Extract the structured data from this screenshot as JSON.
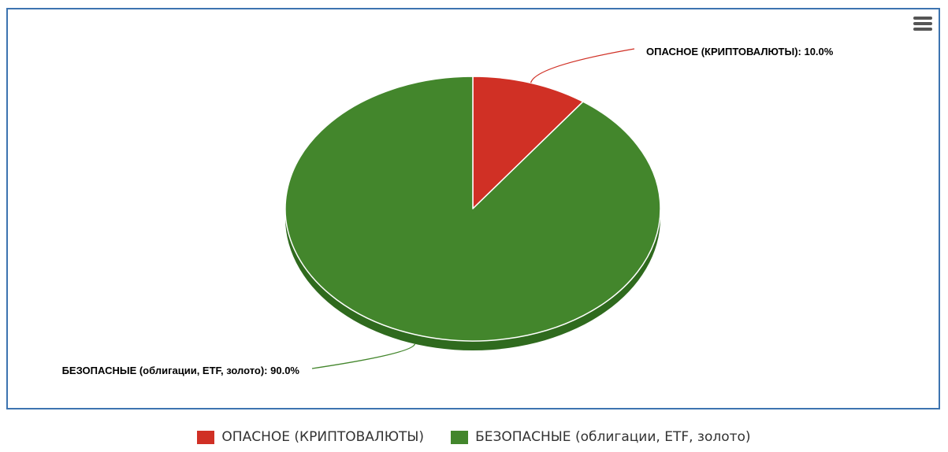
{
  "chart_data": {
    "type": "pie",
    "title": "",
    "categories": [
      "ОПАСНОЕ (КРИПТОВАЛЮТЫ)",
      "БЕЗОПАСНЫЕ (облигации, ETF, золото)"
    ],
    "values": [
      10.0,
      90.0
    ],
    "data_labels": [
      "ОПАСНОЕ (КРИПТОВАЛЮТЫ): 10.0%",
      "БЕЗОПАСНЫЕ (облигации, ETF, золото): 90.0%"
    ],
    "colors": [
      "#d03025",
      "#43862c"
    ],
    "depth_colors": [
      "#a5261d",
      "#2f6a1e"
    ],
    "legend_position": "bottom",
    "style": "3d"
  },
  "ui": {
    "menu_icon": "hamburger-menu-icon"
  }
}
